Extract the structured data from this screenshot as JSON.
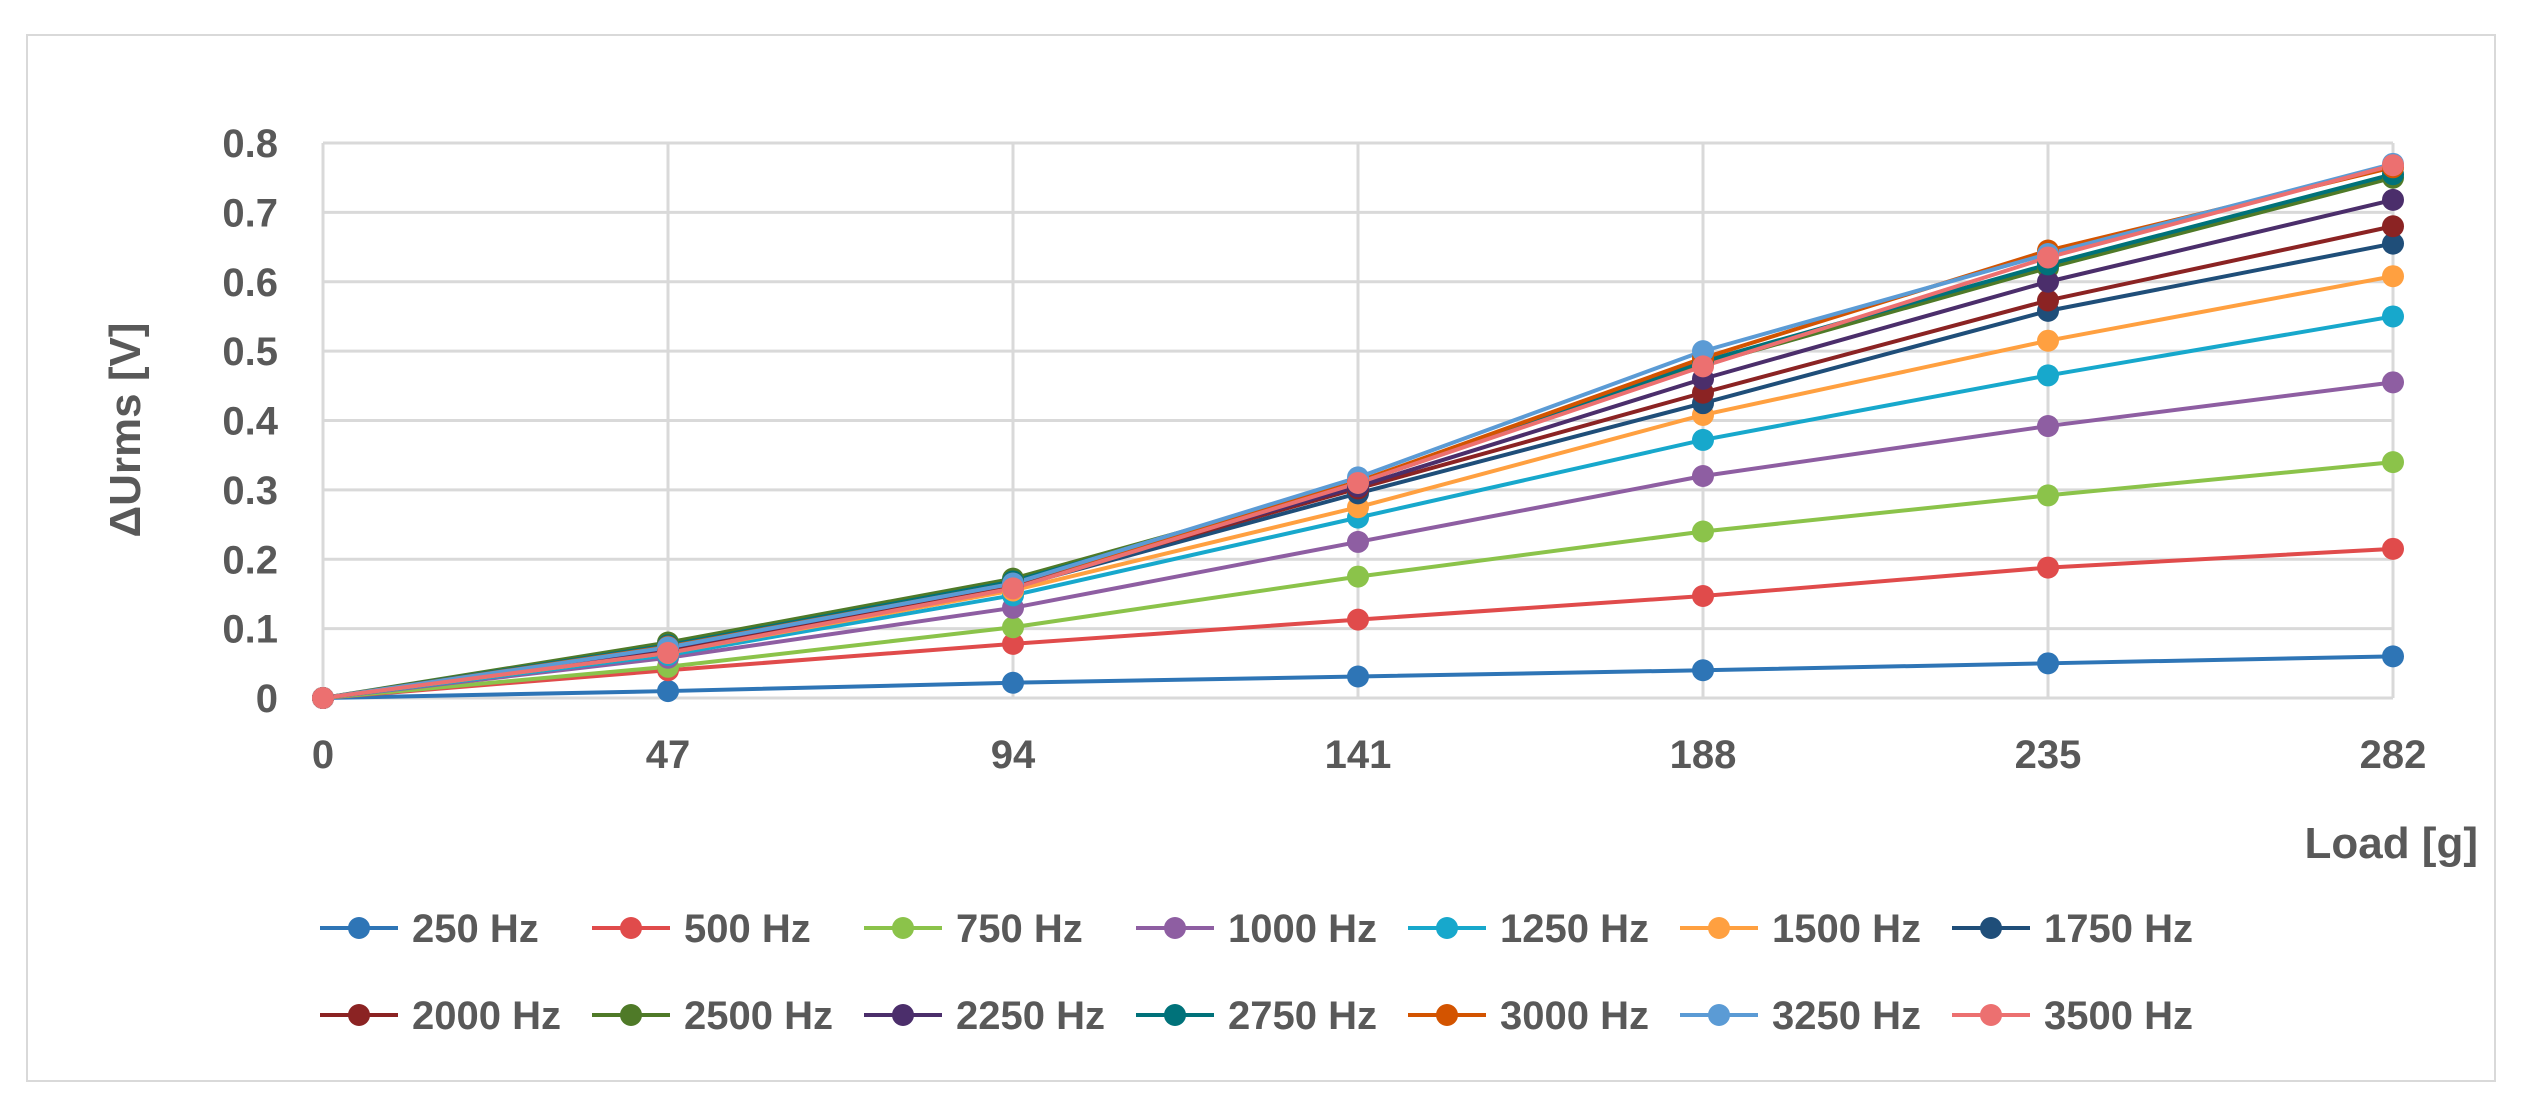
{
  "chart_data": {
    "type": "line",
    "title": "",
    "xlabel": "Load [g]",
    "ylabel": "ΔUrms [V]",
    "x": [
      0,
      47,
      94,
      141,
      188,
      235,
      282
    ],
    "x_tick_labels": [
      "0",
      "47",
      "94",
      "141",
      "188",
      "235",
      "282"
    ],
    "ylim": [
      0,
      0.8
    ],
    "y_ticks": [
      0,
      0.1,
      0.2,
      0.3,
      0.4,
      0.5,
      0.6,
      0.7,
      0.8
    ],
    "y_tick_labels": [
      "0",
      "0.1",
      "0.2",
      "0.3",
      "0.4",
      "0.5",
      "0.6",
      "0.7",
      "0.8"
    ],
    "grid": true,
    "legend_position": "bottom",
    "series": [
      {
        "name": "250 Hz",
        "color": "#2e75b6",
        "values": [
          0,
          0.01,
          0.022,
          0.031,
          0.04,
          0.05,
          0.06
        ]
      },
      {
        "name": "500 Hz",
        "color": "#e04b4b",
        "values": [
          0,
          0.04,
          0.078,
          0.113,
          0.147,
          0.188,
          0.215
        ]
      },
      {
        "name": "750 Hz",
        "color": "#8bc34a",
        "values": [
          0,
          0.045,
          0.102,
          0.175,
          0.24,
          0.292,
          0.34
        ]
      },
      {
        "name": "1000 Hz",
        "color": "#8e5ea2",
        "values": [
          0,
          0.058,
          0.13,
          0.225,
          0.32,
          0.392,
          0.455
        ]
      },
      {
        "name": "1250 Hz",
        "color": "#17a8cc",
        "values": [
          0,
          0.062,
          0.148,
          0.26,
          0.372,
          0.465,
          0.55
        ]
      },
      {
        "name": "1500 Hz",
        "color": "#ffa040",
        "values": [
          0,
          0.065,
          0.155,
          0.275,
          0.408,
          0.515,
          0.608
        ]
      },
      {
        "name": "1750 Hz",
        "color": "#1f4e79",
        "values": [
          0,
          0.068,
          0.16,
          0.295,
          0.425,
          0.558,
          0.655
        ]
      },
      {
        "name": "2000 Hz",
        "color": "#8b2323",
        "values": [
          0,
          0.07,
          0.163,
          0.302,
          0.44,
          0.573,
          0.68
        ]
      },
      {
        "name": "2500 Hz",
        "color": "#4f7a28",
        "values": [
          0,
          0.08,
          0.172,
          0.31,
          0.48,
          0.62,
          0.75
        ]
      },
      {
        "name": "2250 Hz",
        "color": "#4b2e6b",
        "values": [
          0,
          0.072,
          0.165,
          0.305,
          0.46,
          0.6,
          0.718
        ]
      },
      {
        "name": "2750 Hz",
        "color": "#00727a",
        "values": [
          0,
          0.076,
          0.168,
          0.31,
          0.485,
          0.625,
          0.755
        ]
      },
      {
        "name": "3000 Hz",
        "color": "#d35400",
        "values": [
          0,
          0.074,
          0.165,
          0.312,
          0.49,
          0.645,
          0.765
        ]
      },
      {
        "name": "3250 Hz",
        "color": "#5b9bd5",
        "values": [
          0,
          0.073,
          0.165,
          0.318,
          0.5,
          0.64,
          0.77
        ]
      },
      {
        "name": "3500 Hz",
        "color": "#ec7070",
        "values": [
          0,
          0.065,
          0.158,
          0.31,
          0.478,
          0.635,
          0.768
        ]
      }
    ]
  }
}
